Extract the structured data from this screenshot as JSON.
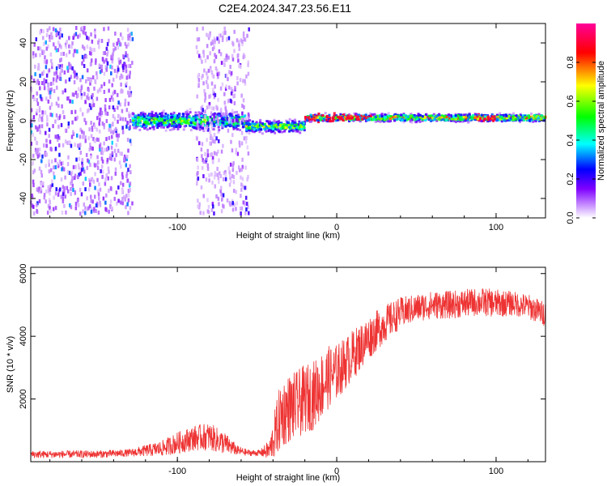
{
  "chart_data": [
    {
      "type": "heatmap",
      "title": "C2E4.2024.347.23.56.E11",
      "xlabel": "Height of straight line (km)",
      "ylabel": "Frequency (Hz)",
      "xlim": [
        -192,
        131
      ],
      "ylim": [
        -50,
        50
      ],
      "x_ticks": [
        -100,
        0,
        100
      ],
      "x_tick_labels": [
        "-100",
        "0",
        "100"
      ],
      "y_ticks": [
        -40,
        -20,
        0,
        20,
        40
      ],
      "y_tick_labels": [
        "-40",
        "-20",
        "0",
        "20",
        "40"
      ],
      "grid": false,
      "colorbar": {
        "label": "Normalized spectral amplitude",
        "range": [
          0,
          1
        ],
        "ticks": [
          0,
          0.2,
          0.4,
          0.6,
          0.8
        ],
        "tick_labels": [
          "0.0",
          "0.2",
          "0.4",
          "0.6",
          "0.8"
        ],
        "colormap": [
          "#ffffff",
          "#7f00ff",
          "#0000ff",
          "#00ffff",
          "#00ff00",
          "#ffff00",
          "#ff0000",
          "#ff00aa"
        ]
      },
      "regions": [
        {
          "x": [
            -192,
            -128
          ],
          "y_spread": 48,
          "amplitude": 0.12,
          "note": "diffuse purple speckle"
        },
        {
          "x": [
            -128,
            -57
          ],
          "y_center": 0,
          "y_spread": 6,
          "amplitude": 0.45,
          "note": "noisy blue/green band"
        },
        {
          "x": [
            -88,
            -55
          ],
          "y_spread": 48,
          "amplitude": 0.08,
          "note": "faint speckle column"
        },
        {
          "x": [
            -57,
            -20
          ],
          "y_center": -3,
          "y_spread": 4,
          "amplitude": 0.5
        },
        {
          "x": [
            -20,
            131
          ],
          "y_center": 1.5,
          "y_spread": 2.5,
          "amplitude": 0.6,
          "note": "narrow tonal line, red/orange near -20..20 and ~95"
        }
      ]
    },
    {
      "type": "line",
      "xlabel": "Height of straight line (km)",
      "ylabel": "SNR (10 * v/v)",
      "xlim": [
        -192,
        131
      ],
      "ylim": [
        0,
        6200
      ],
      "x_ticks": [
        -100,
        0,
        100
      ],
      "x_tick_labels": [
        "-100",
        "0",
        "100"
      ],
      "y_ticks": [
        2000,
        4000,
        6000
      ],
      "y_tick_labels": [
        "2000",
        "4000",
        "6000"
      ],
      "grid": false,
      "color": "#ee3333",
      "envelope_x": [
        -192,
        -150,
        -130,
        -110,
        -100,
        -90,
        -80,
        -70,
        -62,
        -55,
        -48,
        -42,
        -38,
        -35,
        -30,
        -25,
        -20,
        -15,
        -10,
        -5,
        0,
        10,
        20,
        30,
        40,
        50,
        60,
        70,
        80,
        90,
        100,
        110,
        120,
        131
      ],
      "envelope_mean": [
        230,
        240,
        280,
        420,
        600,
        750,
        800,
        580,
        350,
        280,
        280,
        380,
        1000,
        1500,
        1700,
        1800,
        2000,
        2100,
        2400,
        2700,
        2850,
        3400,
        3950,
        4400,
        4750,
        4900,
        5000,
        5000,
        5050,
        5100,
        5050,
        5050,
        4950,
        4700
      ],
      "envelope_spread": [
        120,
        120,
        120,
        250,
        350,
        400,
        450,
        350,
        150,
        100,
        100,
        350,
        900,
        1100,
        1100,
        1100,
        1100,
        1100,
        1100,
        1000,
        900,
        800,
        700,
        600,
        500,
        450,
        450,
        450,
        450,
        450,
        450,
        400,
        400,
        400
      ]
    }
  ]
}
